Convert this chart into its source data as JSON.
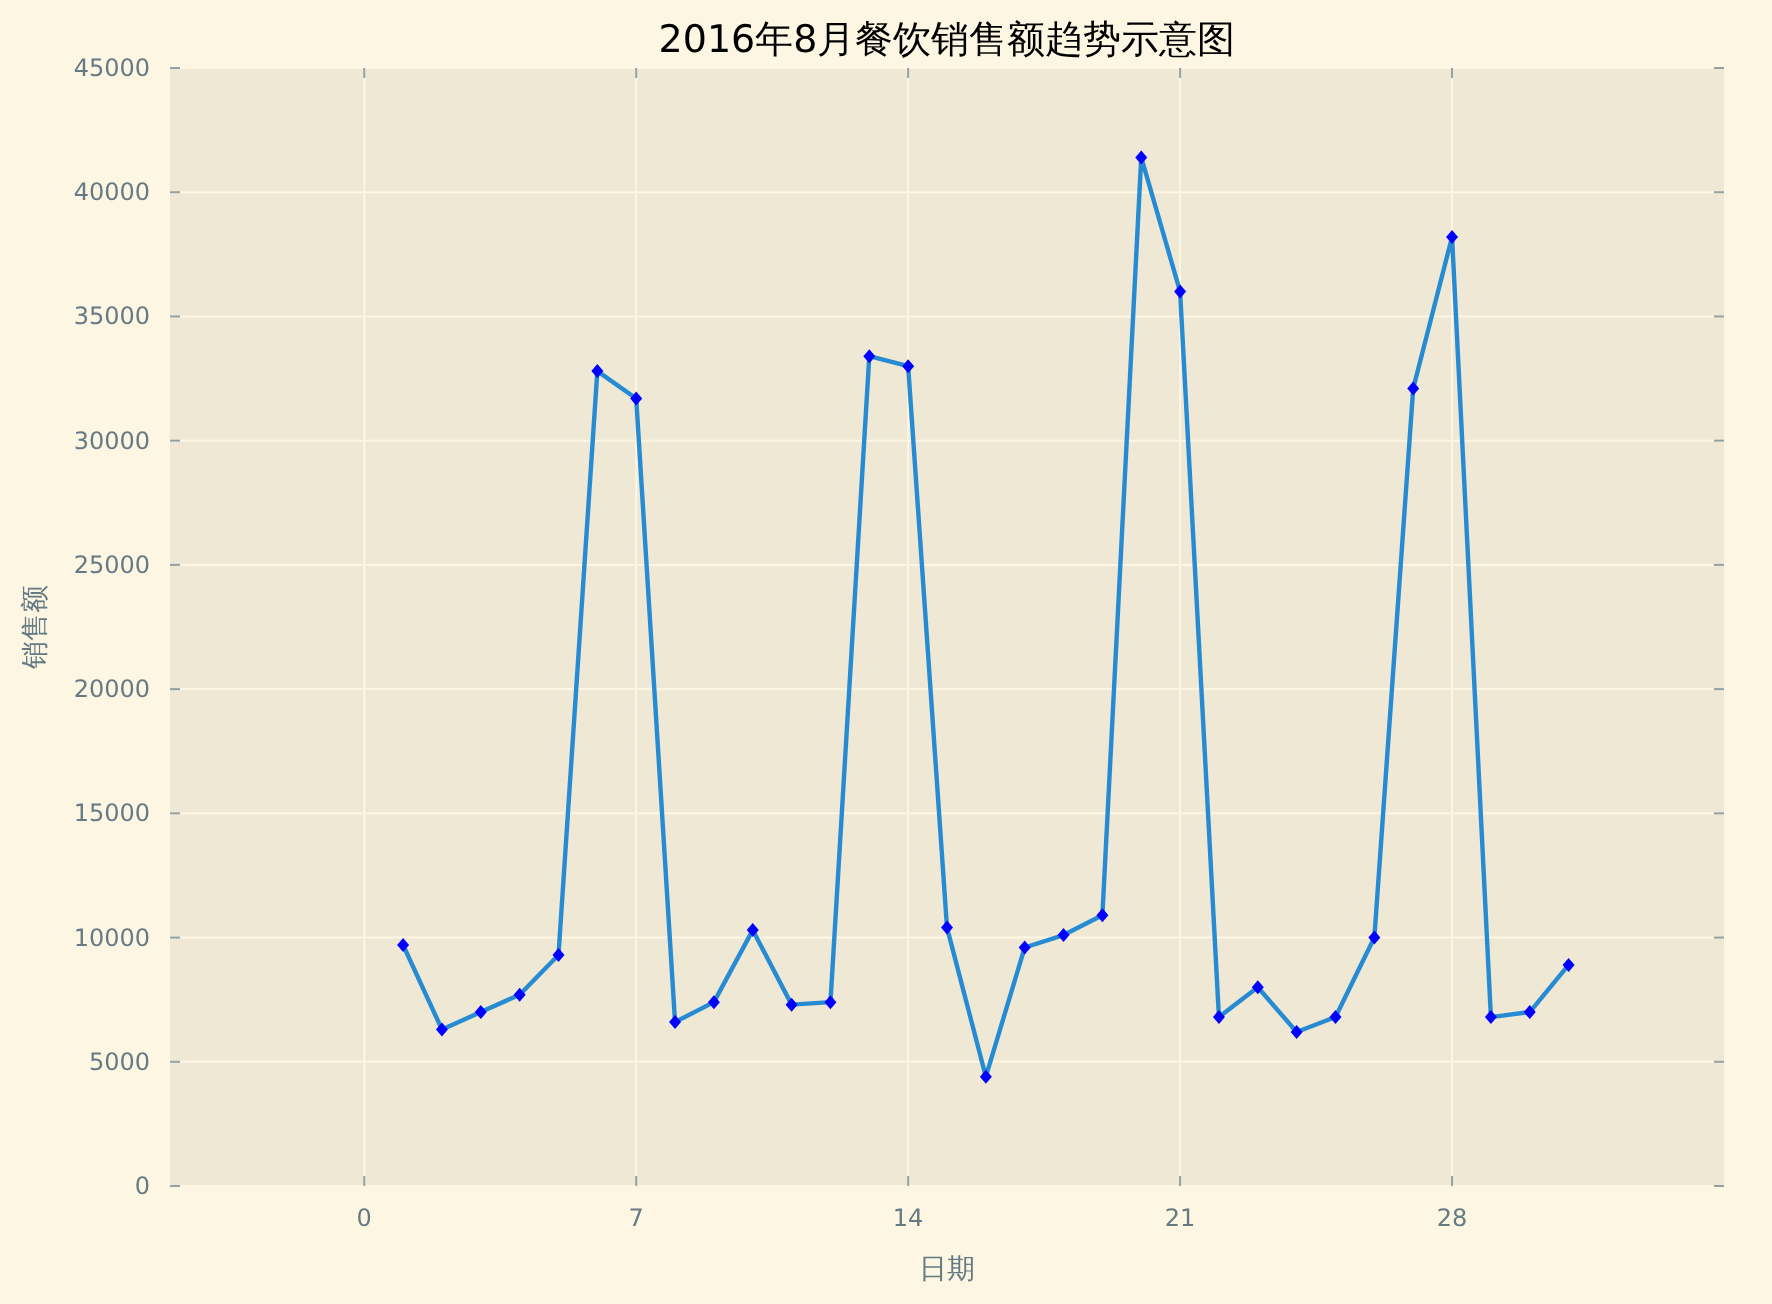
{
  "chart_data": {
    "type": "line",
    "title": "2016年8月餐饮销售额趋势示意图",
    "xlabel": "日期",
    "ylabel": "销售额",
    "x": [
      1,
      2,
      3,
      4,
      5,
      6,
      7,
      8,
      9,
      10,
      11,
      12,
      13,
      14,
      15,
      16,
      17,
      18,
      19,
      20,
      21,
      22,
      23,
      24,
      25,
      26,
      27,
      28,
      29,
      30,
      31
    ],
    "series": [
      {
        "color": "#268bd2",
        "values": [
          9700,
          6300,
          7000,
          7700,
          9300,
          32800,
          31700,
          6600,
          7400,
          10300,
          7300,
          7400,
          33400,
          33000,
          10400,
          4400,
          9600,
          10100,
          10900,
          41400,
          36000,
          6800,
          8000,
          6200,
          6800,
          10000,
          32100,
          38200,
          6800,
          7000,
          8900
        ]
      }
    ],
    "xlim": [
      -5,
      35
    ],
    "ylim": [
      0,
      45000
    ],
    "xticks": [
      0,
      7,
      14,
      21,
      28
    ],
    "yticks": [
      0,
      5000,
      10000,
      15000,
      20000,
      25000,
      30000,
      35000,
      40000,
      45000
    ],
    "grid": true,
    "marker": "diamond",
    "line_style": "solid"
  }
}
